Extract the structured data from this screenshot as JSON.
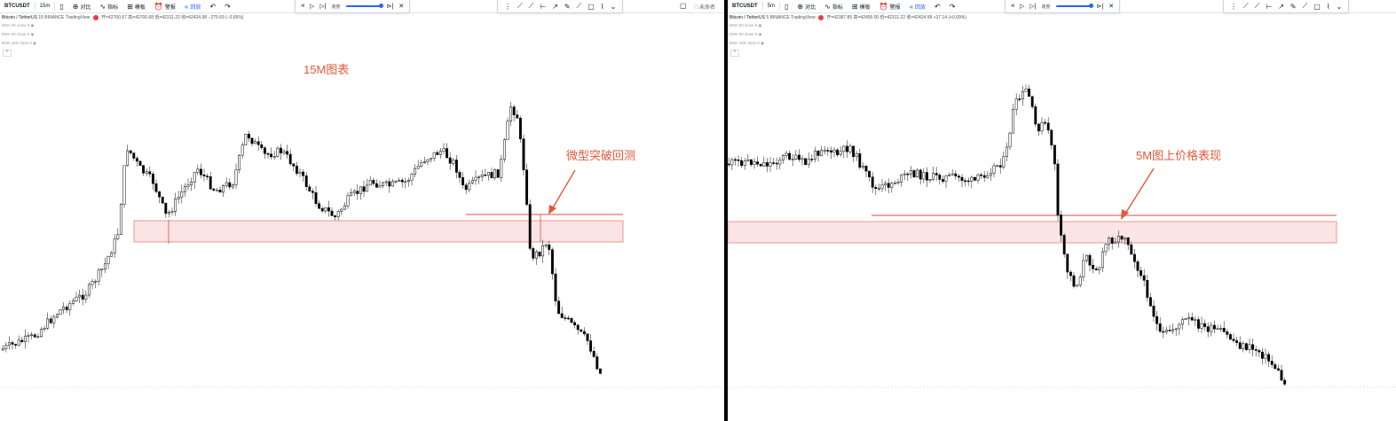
{
  "left": {
    "toolbar": {
      "symbol": "BTCUSDT",
      "interval": "15m",
      "compare_label": "对比",
      "indicators_label": "指标",
      "templates_label": "模板",
      "alert_label": "警报",
      "replay_label": "回放",
      "undo_icon": "undo-icon",
      "redo_icon": "redo-icon"
    },
    "legend": {
      "name": "Bitcoin / TetherUS",
      "interval": "15",
      "exchange": "BINANCE",
      "source": "TradingView",
      "ohlc": "开=42700.67 高=42700.68 低=42311.22 收=42424.98 −275.69 (−0.65%)"
    },
    "ma_lines": [
      "EMA 20 close 0",
      "EMA 50 close 0",
      "EMA 100 close 0"
    ],
    "replay": {
      "speed_label": "速度"
    },
    "cloud_label": "未命名",
    "annotation_title": "15M图表",
    "annotation_note": "微型突破回测"
  },
  "right": {
    "toolbar": {
      "symbol": "BTCUSDT",
      "interval": "5m",
      "compare_label": "对比",
      "indicators_label": "指标",
      "templates_label": "模板",
      "alert_label": "警报",
      "replay_label": "回放"
    },
    "legend": {
      "name": "Bitcoin / TetherUS",
      "interval": "5",
      "exchange": "BINANCE",
      "source": "TradingView",
      "ohlc": "开=42387.85 高=42455.00 低=42311.22 收=42424.98 +37.14 (+0.09%)"
    },
    "ma_lines": [
      "EMA 20 close 0",
      "EMA 50 close 0",
      "EMA 100 close 0"
    ],
    "replay": {
      "speed_label": "速度"
    },
    "annotation_note": "5M图上价格表现"
  },
  "colors": {
    "candle_body": "#000000",
    "zone_fill": "#fbe4e4",
    "zone_border": "#e88080",
    "level_line": "#e04a4a",
    "arrow": "#e05a3a",
    "annotation_text": "#e05a3a",
    "accent": "#2962ff"
  }
}
